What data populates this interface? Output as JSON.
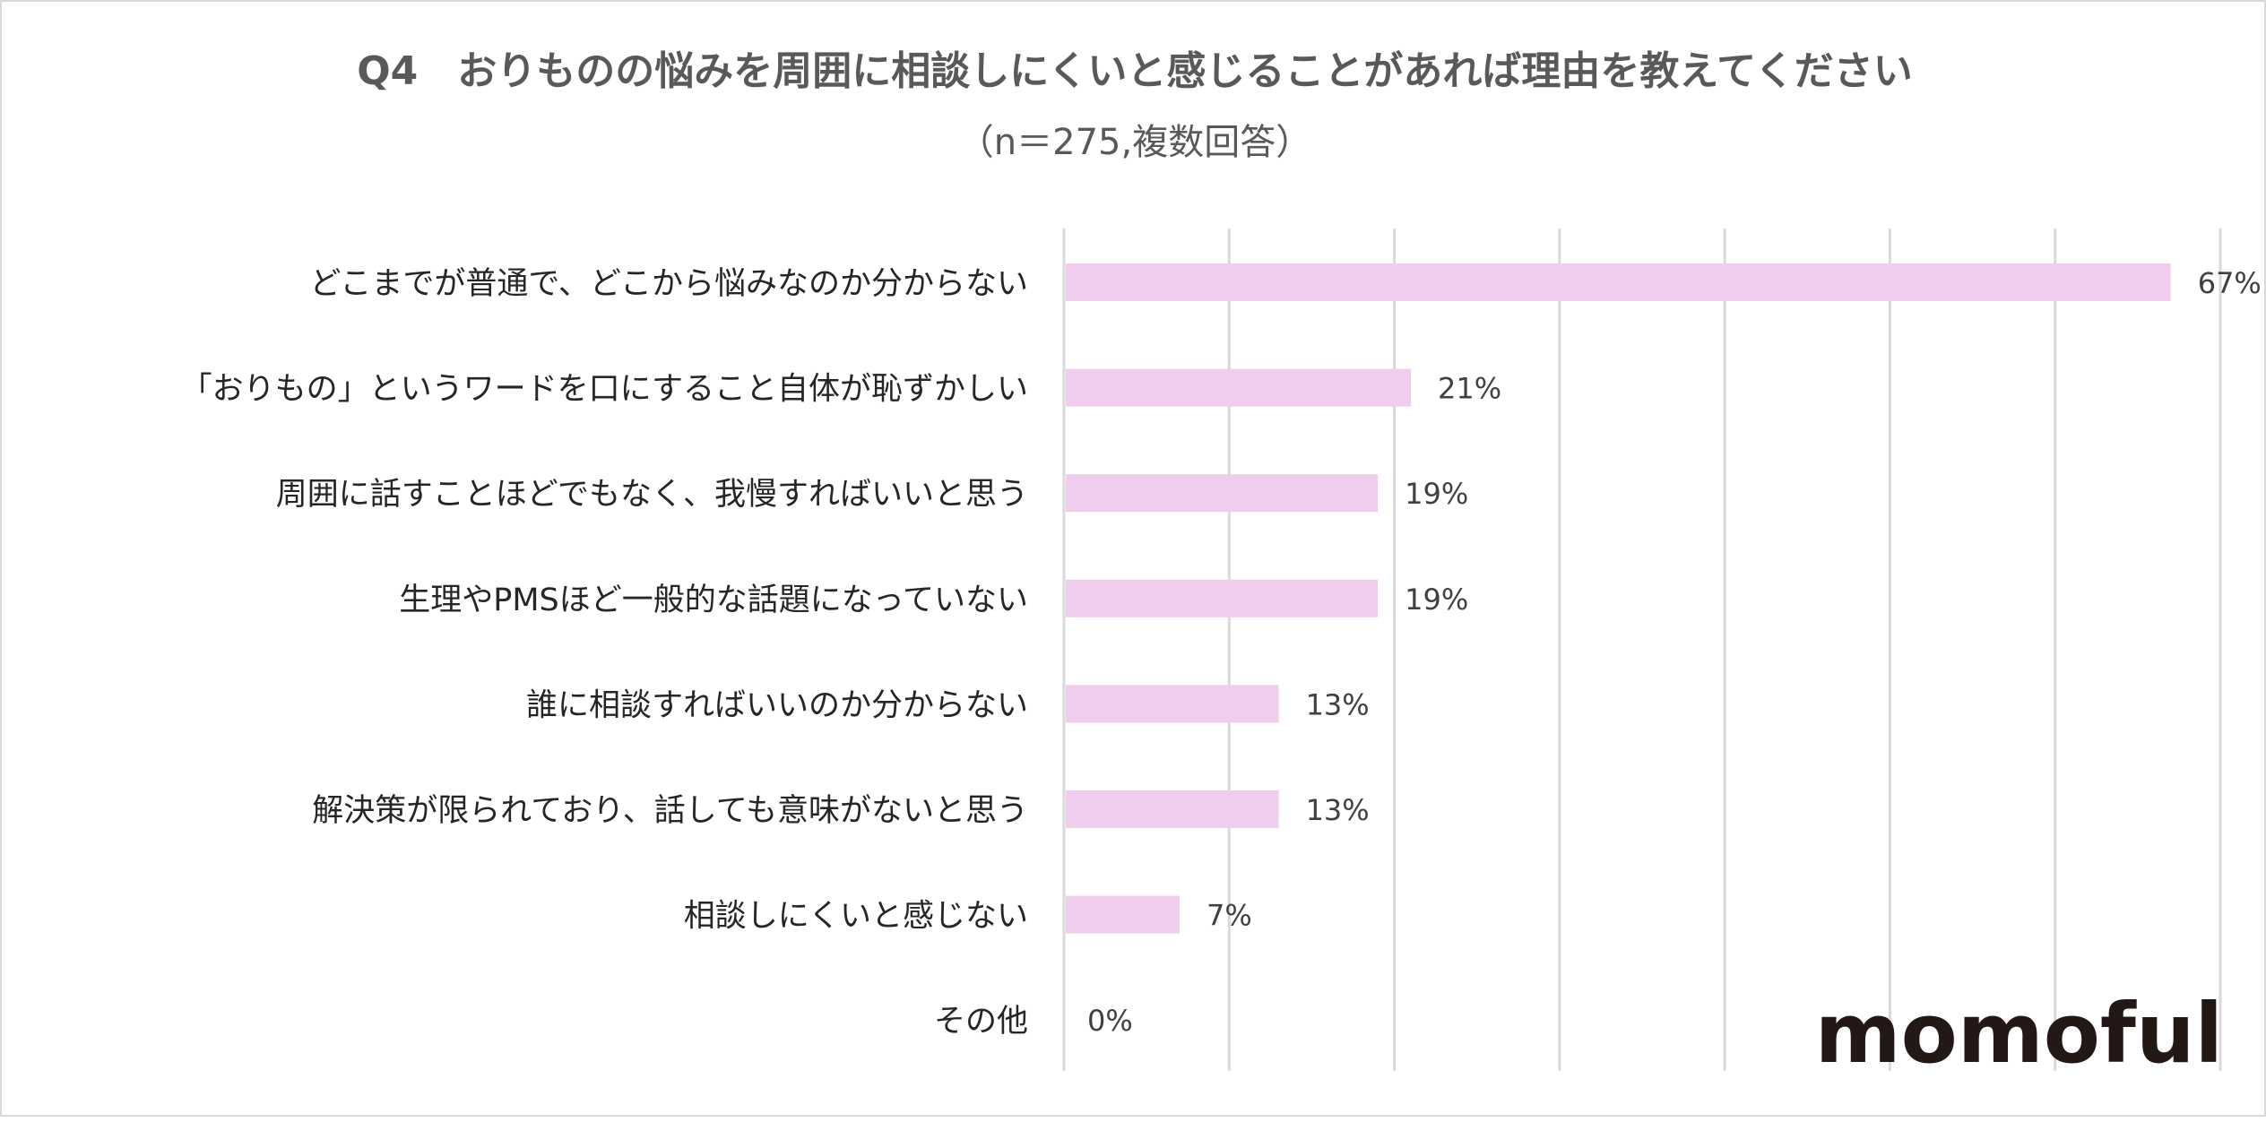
{
  "chart_data": {
    "type": "bar",
    "orientation": "horizontal",
    "title": "Q4　おりものの悩みを周囲に相談しにくいと感じることがあれば理由を教えてください",
    "subtitle": "（n＝275,複数回答）",
    "categories": [
      "どこまでが普通で、どこから悩みなのか分からない",
      "「おりもの」というワードを口にすること自体が恥ずかしい",
      "周囲に話すことほどでもなく、我慢すればいいと思う",
      "生理やPMSほど一般的な話題になっていない",
      "誰に相談すればいいのか分からない",
      "解決策が限られており、話しても意味がないと思う",
      "相談しにくいと感じない",
      "その他"
    ],
    "values": [
      67,
      21,
      19,
      19,
      13,
      13,
      7,
      0
    ],
    "value_labels": [
      "67%",
      "21%",
      "19%",
      "19%",
      "13%",
      "13%",
      "7%",
      "0%"
    ],
    "xlim": [
      0,
      70
    ],
    "grid_step": 10,
    "grid": true,
    "xlabel": "",
    "ylabel": "",
    "bar_color": "#f0cdec",
    "logo": "momoful"
  }
}
